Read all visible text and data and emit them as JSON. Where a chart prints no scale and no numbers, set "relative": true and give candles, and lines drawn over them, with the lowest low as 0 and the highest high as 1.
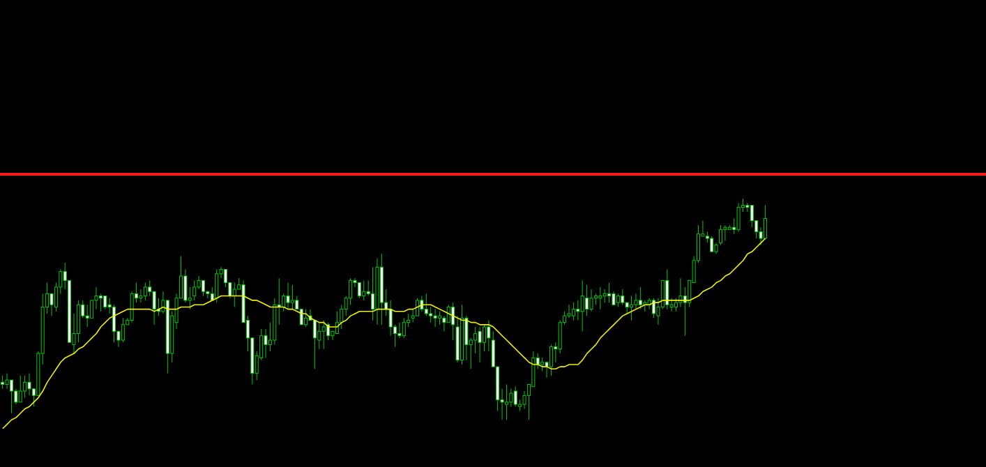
{
  "chart_data": {
    "type": "candlestick",
    "relative": true,
    "color": "#00c800",
    "categories": [
      null,
      null,
      null,
      null,
      null,
      null,
      null,
      null,
      null,
      null,
      null,
      null,
      null,
      null,
      null,
      null,
      null,
      null,
      null,
      null,
      null,
      null,
      null,
      null,
      null,
      null,
      null,
      null,
      null,
      null,
      null,
      null,
      null,
      null,
      null,
      null,
      null,
      null,
      null,
      null,
      null,
      null,
      null,
      null,
      null,
      null,
      null,
      null,
      null,
      null,
      null,
      null,
      null,
      null,
      null,
      null,
      null,
      null,
      null,
      null,
      null,
      null,
      null,
      null,
      null,
      null,
      null,
      null,
      null,
      null,
      null,
      null,
      null,
      null,
      null,
      null,
      null,
      null,
      null,
      null,
      null,
      null,
      null,
      null,
      null,
      null,
      null,
      null,
      null,
      null,
      null,
      null,
      null,
      null,
      null,
      null,
      null,
      null,
      null,
      null,
      null,
      null,
      null,
      null,
      null,
      null,
      null,
      null,
      null,
      null,
      null,
      null,
      null,
      null,
      null,
      null,
      null,
      null,
      null,
      null,
      null,
      null,
      null,
      null,
      null,
      null,
      null,
      null,
      null,
      null,
      null,
      null,
      null,
      null,
      null,
      null,
      null,
      null,
      null,
      null,
      null,
      null,
      null,
      null,
      null,
      null,
      null,
      null,
      null,
      null,
      null,
      null,
      null,
      null,
      null,
      null,
      null,
      null,
      null,
      null,
      null,
      null,
      null,
      null,
      null,
      null,
      null,
      null,
      null,
      null,
      null,
      null
    ],
    "ohlc": [
      [
        0.17,
        0.2,
        0.14,
        0.16
      ],
      [
        0.16,
        0.21,
        0.14,
        0.18
      ],
      [
        0.18,
        0.18,
        0.03,
        0.13
      ],
      [
        0.13,
        0.14,
        0.07,
        0.08
      ],
      [
        0.08,
        0.2,
        0.08,
        0.13
      ],
      [
        0.13,
        0.2,
        0.1,
        0.17
      ],
      [
        0.17,
        0.21,
        0.11,
        0.14
      ],
      [
        0.14,
        0.14,
        0.06,
        0.11
      ],
      [
        0.11,
        0.31,
        0.11,
        0.3
      ],
      [
        0.3,
        0.57,
        0.25,
        0.51
      ],
      [
        0.51,
        0.62,
        0.48,
        0.57
      ],
      [
        0.57,
        0.57,
        0.47,
        0.52
      ],
      [
        0.51,
        0.62,
        0.49,
        0.6
      ],
      [
        0.6,
        0.68,
        0.57,
        0.67
      ],
      [
        0.67,
        0.71,
        0.59,
        0.63
      ],
      [
        0.63,
        0.63,
        0.35,
        0.35
      ],
      [
        0.34,
        0.48,
        0.3,
        0.39
      ],
      [
        0.39,
        0.54,
        0.35,
        0.52
      ],
      [
        0.52,
        0.54,
        0.46,
        0.47
      ],
      [
        0.47,
        0.52,
        0.42,
        0.46
      ],
      [
        0.46,
        0.54,
        0.46,
        0.54
      ],
      [
        0.54,
        0.6,
        0.5,
        0.56
      ],
      [
        0.56,
        0.57,
        0.49,
        0.55
      ],
      [
        0.56,
        0.56,
        0.5,
        0.51
      ],
      [
        0.52,
        0.55,
        0.48,
        0.51
      ],
      [
        0.51,
        0.52,
        0.35,
        0.4
      ],
      [
        0.4,
        0.4,
        0.33,
        0.36
      ],
      [
        0.36,
        0.46,
        0.35,
        0.43
      ],
      [
        0.43,
        0.46,
        0.43,
        0.45
      ],
      [
        0.45,
        0.58,
        0.44,
        0.57
      ],
      [
        0.57,
        0.62,
        0.53,
        0.55
      ],
      [
        0.55,
        0.59,
        0.53,
        0.56
      ],
      [
        0.56,
        0.62,
        0.54,
        0.6
      ],
      [
        0.6,
        0.63,
        0.56,
        0.58
      ],
      [
        0.58,
        0.58,
        0.43,
        0.5
      ],
      [
        0.5,
        0.55,
        0.47,
        0.49
      ],
      [
        0.49,
        0.58,
        0.48,
        0.54
      ],
      [
        0.54,
        0.54,
        0.21,
        0.3
      ],
      [
        0.3,
        0.49,
        0.26,
        0.47
      ],
      [
        0.44,
        0.57,
        0.41,
        0.55
      ],
      [
        0.55,
        0.74,
        0.55,
        0.65
      ],
      [
        0.65,
        0.68,
        0.53,
        0.54
      ],
      [
        0.54,
        0.6,
        0.5,
        0.55
      ],
      [
        0.56,
        0.63,
        0.54,
        0.6
      ],
      [
        0.6,
        0.65,
        0.59,
        0.63
      ],
      [
        0.63,
        0.63,
        0.56,
        0.58
      ],
      [
        0.58,
        0.58,
        0.55,
        0.57
      ],
      [
        0.57,
        0.6,
        0.54,
        0.54
      ],
      [
        0.55,
        0.68,
        0.53,
        0.66
      ],
      [
        0.66,
        0.69,
        0.64,
        0.68
      ],
      [
        0.68,
        0.68,
        0.6,
        0.62
      ],
      [
        0.62,
        0.62,
        0.55,
        0.56
      ],
      [
        0.56,
        0.62,
        0.51,
        0.59
      ],
      [
        0.59,
        0.64,
        0.59,
        0.61
      ],
      [
        0.61,
        0.63,
        0.44,
        0.44
      ],
      [
        0.45,
        0.47,
        0.31,
        0.37
      ],
      [
        0.37,
        0.37,
        0.16,
        0.21
      ],
      [
        0.21,
        0.31,
        0.18,
        0.29
      ],
      [
        0.28,
        0.41,
        0.27,
        0.38
      ],
      [
        0.38,
        0.41,
        0.28,
        0.34
      ],
      [
        0.34,
        0.44,
        0.31,
        0.36
      ],
      [
        0.36,
        0.55,
        0.34,
        0.52
      ],
      [
        0.52,
        0.64,
        0.43,
        0.51
      ],
      [
        0.51,
        0.57,
        0.49,
        0.56
      ],
      [
        0.56,
        0.62,
        0.5,
        0.53
      ],
      [
        0.53,
        0.61,
        0.5,
        0.54
      ],
      [
        0.54,
        0.56,
        0.5,
        0.5
      ],
      [
        0.5,
        0.5,
        0.43,
        0.43
      ],
      [
        0.43,
        0.5,
        0.42,
        0.46
      ],
      [
        0.47,
        0.5,
        0.45,
        0.45
      ],
      [
        0.45,
        0.45,
        0.23,
        0.37
      ],
      [
        0.36,
        0.44,
        0.32,
        0.4
      ],
      [
        0.4,
        0.45,
        0.32,
        0.42
      ],
      [
        0.43,
        0.44,
        0.36,
        0.38
      ],
      [
        0.38,
        0.4,
        0.36,
        0.4
      ],
      [
        0.39,
        0.49,
        0.39,
        0.44
      ],
      [
        0.44,
        0.52,
        0.41,
        0.5
      ],
      [
        0.5,
        0.56,
        0.47,
        0.55
      ],
      [
        0.55,
        0.64,
        0.52,
        0.63
      ],
      [
        0.63,
        0.64,
        0.6,
        0.62
      ],
      [
        0.62,
        0.62,
        0.55,
        0.56
      ],
      [
        0.56,
        0.63,
        0.54,
        0.58
      ],
      [
        0.58,
        0.63,
        0.56,
        0.57
      ],
      [
        0.57,
        0.69,
        0.45,
        0.5
      ],
      [
        0.5,
        0.73,
        0.43,
        0.69
      ],
      [
        0.69,
        0.75,
        0.43,
        0.53
      ],
      [
        0.53,
        0.59,
        0.47,
        0.5
      ],
      [
        0.5,
        0.54,
        0.38,
        0.42
      ],
      [
        0.42,
        0.43,
        0.33,
        0.39
      ],
      [
        0.39,
        0.44,
        0.37,
        0.38
      ],
      [
        0.38,
        0.46,
        0.37,
        0.44
      ],
      [
        0.44,
        0.48,
        0.42,
        0.45
      ],
      [
        0.46,
        0.5,
        0.44,
        0.47
      ],
      [
        0.47,
        0.55,
        0.47,
        0.54
      ],
      [
        0.54,
        0.56,
        0.49,
        0.5
      ],
      [
        0.5,
        0.57,
        0.47,
        0.48
      ],
      [
        0.48,
        0.51,
        0.44,
        0.47
      ],
      [
        0.47,
        0.5,
        0.42,
        0.46
      ],
      [
        0.46,
        0.49,
        0.43,
        0.47
      ],
      [
        0.46,
        0.47,
        0.4,
        0.44
      ],
      [
        0.44,
        0.52,
        0.44,
        0.51
      ],
      [
        0.51,
        0.53,
        0.36,
        0.43
      ],
      [
        0.42,
        0.47,
        0.26,
        0.27
      ],
      [
        0.27,
        0.52,
        0.25,
        0.46
      ],
      [
        0.46,
        0.47,
        0.27,
        0.34
      ],
      [
        0.34,
        0.37,
        0.23,
        0.36
      ],
      [
        0.36,
        0.42,
        0.3,
        0.39
      ],
      [
        0.4,
        0.42,
        0.26,
        0.35
      ],
      [
        0.35,
        0.43,
        0.31,
        0.42
      ],
      [
        0.42,
        0.45,
        0.31,
        0.37
      ],
      [
        0.36,
        0.4,
        0.24,
        0.24
      ],
      [
        0.24,
        0.24,
        0.04,
        0.09
      ],
      [
        0.09,
        0.14,
        0,
        0.08
      ],
      [
        0.07,
        0.16,
        0,
        0.08
      ],
      [
        0.08,
        0.14,
        0.06,
        0.12
      ],
      [
        0.13,
        0.15,
        0.06,
        0.07
      ],
      [
        0.06,
        0.09,
        0.04,
        0.07
      ],
      [
        0.07,
        0.13,
        0.05,
        0.11
      ],
      [
        0.11,
        0.16,
        0,
        0.16
      ],
      [
        0.15,
        0.31,
        0.15,
        0.28
      ],
      [
        0.28,
        0.3,
        0.23,
        0.25
      ],
      [
        0.25,
        0.28,
        0.22,
        0.26
      ],
      [
        0.26,
        0.26,
        0.19,
        0.24
      ],
      [
        0.24,
        0.34,
        0.2,
        0.33
      ],
      [
        0.33,
        0.35,
        0.26,
        0.32
      ],
      [
        0.32,
        0.45,
        0.3,
        0.44
      ],
      [
        0.44,
        0.49,
        0.43,
        0.47
      ],
      [
        0.47,
        0.52,
        0.46,
        0.48
      ],
      [
        0.47,
        0.53,
        0.45,
        0.5
      ],
      [
        0.5,
        0.54,
        0.45,
        0.49
      ],
      [
        0.49,
        0.63,
        0.4,
        0.56
      ],
      [
        0.55,
        0.61,
        0.47,
        0.5
      ],
      [
        0.5,
        0.59,
        0.49,
        0.55
      ],
      [
        0.55,
        0.57,
        0.52,
        0.56
      ],
      [
        0.55,
        0.6,
        0.5,
        0.56
      ],
      [
        0.56,
        0.59,
        0.53,
        0.57
      ],
      [
        0.57,
        0.62,
        0.53,
        0.56
      ],
      [
        0.57,
        0.58,
        0.52,
        0.52
      ],
      [
        0.53,
        0.57,
        0.51,
        0.56
      ],
      [
        0.56,
        0.59,
        0.52,
        0.53
      ],
      [
        0.53,
        0.53,
        0.48,
        0.51
      ],
      [
        0.51,
        0.56,
        0.45,
        0.52
      ],
      [
        0.52,
        0.57,
        0.5,
        0.54
      ],
      [
        0.54,
        0.6,
        0.5,
        0.52
      ],
      [
        0.52,
        0.54,
        0.49,
        0.53
      ],
      [
        0.52,
        0.55,
        0.5,
        0.54
      ],
      [
        0.54,
        0.55,
        0.46,
        0.48
      ],
      [
        0.47,
        0.55,
        0.43,
        0.51
      ],
      [
        0.51,
        0.63,
        0.5,
        0.63
      ],
      [
        0.63,
        0.68,
        0.5,
        0.52
      ],
      [
        0.51,
        0.55,
        0.49,
        0.52
      ],
      [
        0.51,
        0.55,
        0.49,
        0.53
      ],
      [
        0.53,
        0.64,
        0.51,
        0.56
      ],
      [
        0.56,
        0.6,
        0.38,
        0.53
      ],
      [
        0.53,
        0.63,
        0.51,
        0.63
      ],
      [
        0.62,
        0.74,
        0.62,
        0.72
      ],
      [
        0.72,
        0.88,
        0.71,
        0.84
      ],
      [
        0.83,
        0.9,
        0.83,
        0.84
      ],
      [
        0.83,
        0.85,
        0.8,
        0.82
      ],
      [
        0.82,
        0.83,
        0.76,
        0.76
      ],
      [
        0.76,
        0.8,
        0.75,
        0.79
      ],
      [
        0.8,
        0.88,
        0.79,
        0.86
      ],
      [
        0.86,
        0.88,
        0.81,
        0.87
      ],
      [
        0.86,
        0.88,
        0.86,
        0.87
      ],
      [
        0.87,
        0.91,
        0.84,
        0.86
      ],
      [
        0.86,
        0.98,
        0.85,
        0.96
      ],
      [
        0.96,
        1,
        0.94,
        0.97
      ],
      [
        0.97,
        0.98,
        0.94,
        0.96
      ],
      [
        0.97,
        0.97,
        0.87,
        0.9
      ],
      [
        0.9,
        0.9,
        0.82,
        0.85
      ],
      [
        0.85,
        0.87,
        0.79,
        0.82
      ],
      [
        0.82,
        0.97,
        0.82,
        0.91
      ]
    ],
    "series": [
      {
        "type": "line",
        "color": "#f0f000",
        "values": [
          -0.04,
          -0.02,
          0,
          0.01,
          0.03,
          0.05,
          0.06,
          0.08,
          0.1,
          0.13,
          0.17,
          0.2,
          0.23,
          0.26,
          0.28,
          0.29,
          0.3,
          0.32,
          0.33,
          0.35,
          0.37,
          0.39,
          0.42,
          0.44,
          0.46,
          0.47,
          0.48,
          0.49,
          0.5,
          0.5,
          0.5,
          0.5,
          0.5,
          0.5,
          0.49,
          0.5,
          0.51,
          0.5,
          0.5,
          0.5,
          0.51,
          0.51,
          0.51,
          0.52,
          0.52,
          0.52,
          0.53,
          0.54,
          0.55,
          0.56,
          0.56,
          0.56,
          0.56,
          0.56,
          0.56,
          0.55,
          0.54,
          0.54,
          0.53,
          0.52,
          0.51,
          0.51,
          0.51,
          0.51,
          0.5,
          0.5,
          0.49,
          0.48,
          0.48,
          0.46,
          0.45,
          0.44,
          0.44,
          0.42,
          0.42,
          0.42,
          0.44,
          0.45,
          0.47,
          0.48,
          0.49,
          0.49,
          0.49,
          0.49,
          0.5,
          0.5,
          0.5,
          0.5,
          0.49,
          0.49,
          0.49,
          0.5,
          0.5,
          0.51,
          0.52,
          0.52,
          0.52,
          0.51,
          0.5,
          0.49,
          0.48,
          0.47,
          0.46,
          0.45,
          0.45,
          0.44,
          0.44,
          0.43,
          0.43,
          0.43,
          0.42,
          0.4,
          0.38,
          0.36,
          0.34,
          0.32,
          0.3,
          0.28,
          0.26,
          0.25,
          0.25,
          0.24,
          0.24,
          0.23,
          0.23,
          0.24,
          0.24,
          0.25,
          0.25,
          0.25,
          0.27,
          0.3,
          0.32,
          0.34,
          0.37,
          0.39,
          0.41,
          0.43,
          0.45,
          0.47,
          0.48,
          0.49,
          0.5,
          0.51,
          0.52,
          0.52,
          0.53,
          0.53,
          0.54,
          0.54,
          0.54,
          0.54,
          0.54,
          0.54,
          0.54,
          0.55,
          0.56,
          0.58,
          0.59,
          0.6,
          0.62,
          0.63,
          0.65,
          0.66,
          0.68,
          0.7,
          0.72,
          0.75,
          0.76,
          0.78,
          0.8,
          0.82
        ]
      }
    ],
    "ref_lines": [
      {
        "axis": "y",
        "value": 1.11,
        "color": "#ff1a1a"
      }
    ]
  }
}
